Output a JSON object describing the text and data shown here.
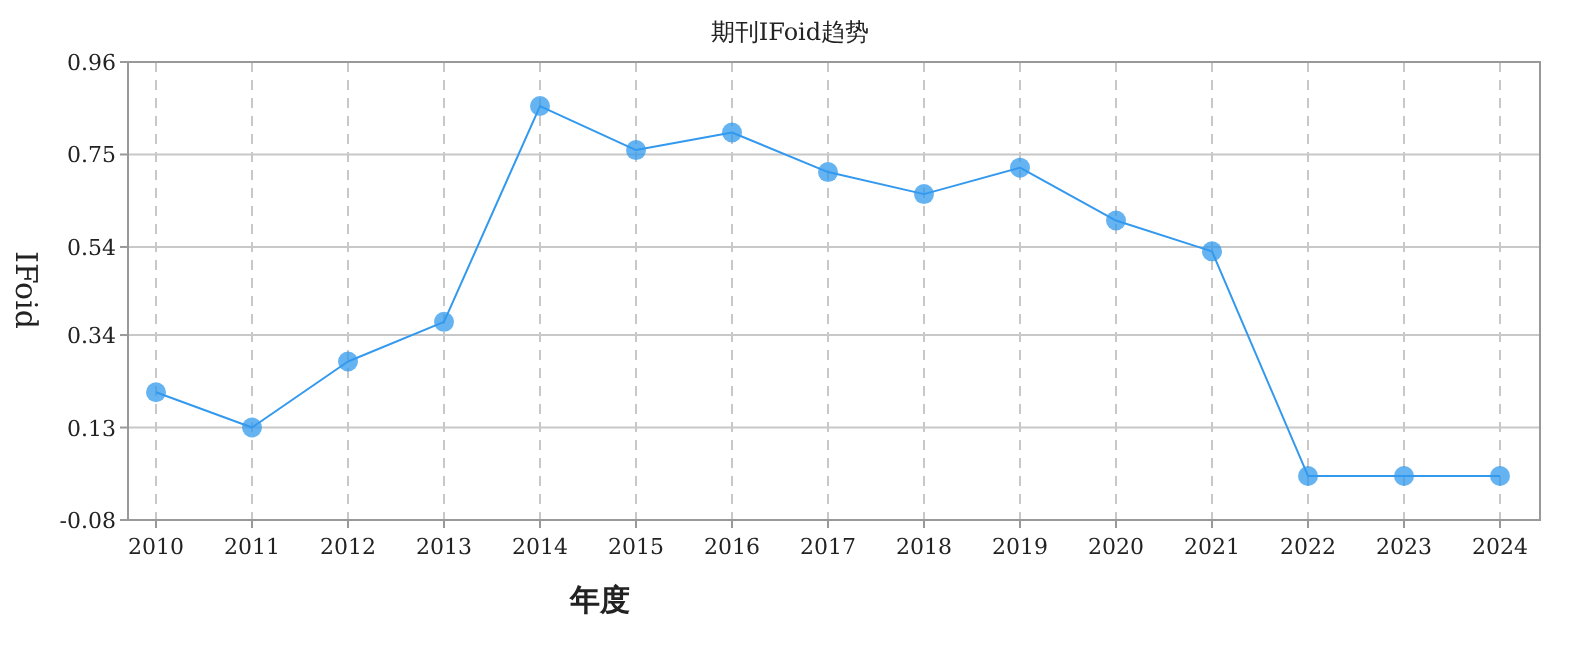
{
  "chart_data": {
    "type": "line",
    "title": "期刊IFoid趋势",
    "xlabel": "年度",
    "ylabel": "IFoid",
    "categories": [
      "2010",
      "2011",
      "2012",
      "2013",
      "2014",
      "2015",
      "2016",
      "2017",
      "2018",
      "2019",
      "2020",
      "2021",
      "2022",
      "2023",
      "2024"
    ],
    "series": [
      {
        "color": "#3399ee",
        "values": [
          0.21,
          0.13,
          0.28,
          0.37,
          0.86,
          0.76,
          0.8,
          0.71,
          0.66,
          0.72,
          0.6,
          0.53,
          0.02,
          0.02,
          0.02
        ]
      }
    ],
    "ylim": [
      -0.08,
      0.96
    ],
    "yticks": [
      -0.08,
      0.13,
      0.34,
      0.54,
      0.75,
      0.96
    ],
    "grid": true,
    "marker": "circle",
    "line_style": "solid"
  }
}
